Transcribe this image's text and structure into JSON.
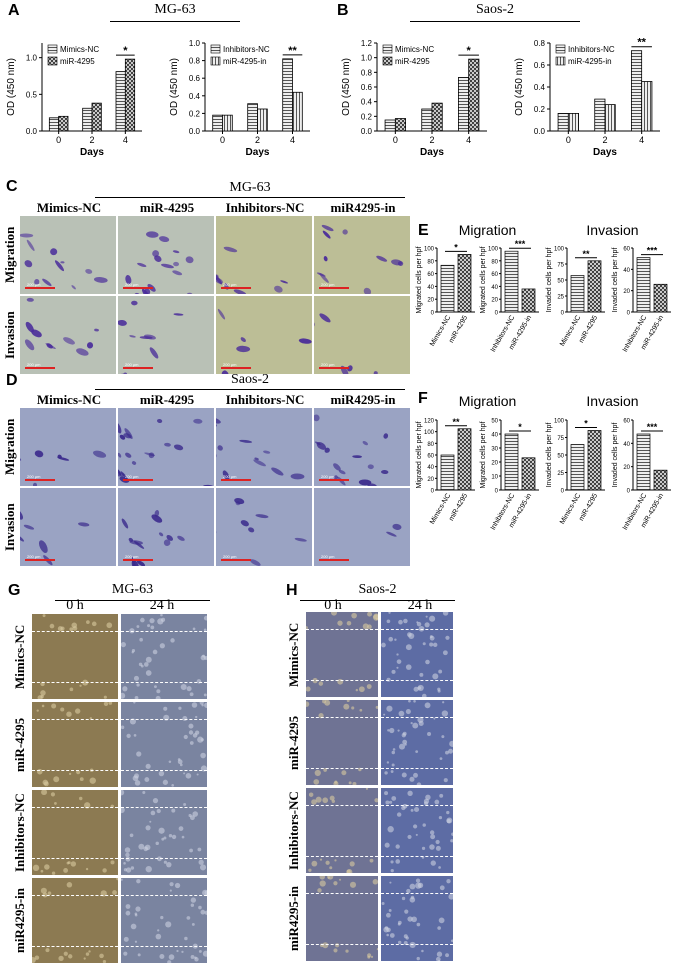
{
  "panel_labels": {
    "A": "A",
    "B": "B",
    "C": "C",
    "D": "D",
    "E": "E",
    "F": "F",
    "G": "G",
    "H": "H"
  },
  "titles": {
    "A": "MG-63",
    "B": "Saos-2",
    "C": "MG-63",
    "D": "Saos-2",
    "E_migration": "Migration",
    "E_invasion": "Invasion",
    "F_migration": "Migration",
    "F_invasion": "Invasion",
    "G": "MG-63",
    "H": "Saos-2"
  },
  "column_headers_cd": [
    "Mimics-NC",
    "miR-4295",
    "Inhibitors-NC",
    "miR4295-in"
  ],
  "row_labels_cd": [
    "Migration",
    "Invasion"
  ],
  "time_headers": [
    "0 h",
    "24 h"
  ],
  "row_labels_g": [
    "Mimics-NC",
    "miR-4295",
    "Inhibitors-NC",
    "miR4295-in"
  ],
  "row_labels_h": [
    "Mimics-NC",
    "miR-4295",
    "Inhibitors-NC",
    "miR4295-in"
  ],
  "scale_text": "200 μm",
  "colors": {
    "micro_cd_mg63_ctrl": "#b9c1b6",
    "micro_cd_mg63_inh": "#bcbe96",
    "micro_saos": "#9aa3c3",
    "wound_mg63_0h": "#8c7a52",
    "wound_mg63_24h": "#7a84a0",
    "wound_saos": "#5d6ca4"
  },
  "chart_data": [
    {
      "id": "A1",
      "type": "bar",
      "ylabel": "OD (450 nm)",
      "xlabel": "Days",
      "categories": [
        "0",
        "2",
        "4"
      ],
      "ylim": [
        0,
        1.2
      ],
      "yticks": [
        "0.0",
        "0.5",
        "1.0"
      ],
      "series": [
        {
          "name": "Mimics-NC",
          "values": [
            0.18,
            0.31,
            0.81
          ]
        },
        {
          "name": "miR-4295",
          "values": [
            0.2,
            0.38,
            0.98
          ]
        }
      ],
      "annotations": [
        {
          "text": "*",
          "category": "4"
        }
      ]
    },
    {
      "id": "A2",
      "type": "bar",
      "ylabel": "OD (450 nm)",
      "xlabel": "Days",
      "categories": [
        "0",
        "2",
        "4"
      ],
      "ylim": [
        0,
        1.0
      ],
      "yticks": [
        "0.0",
        "0.2",
        "0.4",
        "0.6",
        "0.8",
        "1.0"
      ],
      "series": [
        {
          "name": "Inhibitors-NC",
          "values": [
            0.18,
            0.31,
            0.82
          ]
        },
        {
          "name": "miR-4295-in",
          "values": [
            0.18,
            0.25,
            0.44
          ]
        }
      ],
      "annotations": [
        {
          "text": "**",
          "category": "4"
        }
      ]
    },
    {
      "id": "B1",
      "type": "bar",
      "ylabel": "OD (450 nm)",
      "xlabel": "Days",
      "categories": [
        "0",
        "2",
        "4"
      ],
      "ylim": [
        0,
        1.2
      ],
      "yticks": [
        "0.0",
        "0.2",
        "0.4",
        "0.6",
        "0.8",
        "1.0",
        "1.2"
      ],
      "series": [
        {
          "name": "Mimics-NC",
          "values": [
            0.15,
            0.3,
            0.73
          ]
        },
        {
          "name": "miR-4295",
          "values": [
            0.17,
            0.38,
            0.98
          ]
        }
      ],
      "annotations": [
        {
          "text": "*",
          "category": "4"
        }
      ]
    },
    {
      "id": "B2",
      "type": "bar",
      "ylabel": "OD (450 nm)",
      "xlabel": "Days",
      "categories": [
        "0",
        "2",
        "4"
      ],
      "ylim": [
        0,
        0.8
      ],
      "yticks": [
        "0.0",
        "0.2",
        "0.4",
        "0.6",
        "0.8"
      ],
      "series": [
        {
          "name": "Inhibitors-NC",
          "values": [
            0.16,
            0.29,
            0.73
          ]
        },
        {
          "name": "miR-4295-in",
          "values": [
            0.16,
            0.24,
            0.45
          ]
        }
      ],
      "annotations": [
        {
          "text": "**",
          "category": "4"
        }
      ]
    },
    {
      "id": "E1",
      "type": "bar",
      "ylabel": "Migrated cells per hpf",
      "categories": [
        "Mimics-NC",
        "miR-4295"
      ],
      "values": [
        73,
        90
      ],
      "ylim": [
        0,
        100
      ],
      "yticks": [
        "0",
        "20",
        "40",
        "60",
        "80",
        "100"
      ],
      "annotations": [
        {
          "text": "*"
        }
      ]
    },
    {
      "id": "E2",
      "type": "bar",
      "ylabel": "Migrated cells per hpf",
      "categories": [
        "Inhibitors-NC",
        "miR-4295-in"
      ],
      "values": [
        95,
        36
      ],
      "ylim": [
        0,
        100
      ],
      "yticks": [
        "0",
        "20",
        "40",
        "60",
        "80",
        "100"
      ],
      "annotations": [
        {
          "text": "***"
        }
      ]
    },
    {
      "id": "E3",
      "type": "bar",
      "ylabel": "Invaded cells per hpf",
      "categories": [
        "Mimics-NC",
        "miR-4295"
      ],
      "values": [
        57,
        80
      ],
      "ylim": [
        0,
        100
      ],
      "yticks": [
        "0",
        "25",
        "50",
        "75",
        "100"
      ],
      "annotations": [
        {
          "text": "**"
        }
      ]
    },
    {
      "id": "E4",
      "type": "bar",
      "ylabel": "Invaded cells per hpf",
      "categories": [
        "Inhibitors-NC",
        "miR-4295-in"
      ],
      "values": [
        51,
        26
      ],
      "ylim": [
        0,
        60
      ],
      "yticks": [
        "0",
        "20",
        "40",
        "60"
      ],
      "annotations": [
        {
          "text": "***"
        }
      ]
    },
    {
      "id": "F1",
      "type": "bar",
      "ylabel": "Migrated cells per hpf",
      "categories": [
        "Mimics-NC",
        "miR-4295"
      ],
      "values": [
        60,
        105
      ],
      "ylim": [
        0,
        120
      ],
      "yticks": [
        "0",
        "20",
        "40",
        "60",
        "80",
        "100",
        "120"
      ],
      "annotations": [
        {
          "text": "**"
        }
      ]
    },
    {
      "id": "F2",
      "type": "bar",
      "ylabel": "Migrated cells per hpf",
      "categories": [
        "Inhibitors-NC",
        "miR-4295-in"
      ],
      "values": [
        40,
        23
      ],
      "ylim": [
        0,
        50
      ],
      "yticks": [
        "0",
        "10",
        "20",
        "30",
        "40",
        "50"
      ],
      "annotations": [
        {
          "text": "*"
        }
      ]
    },
    {
      "id": "F3",
      "type": "bar",
      "ylabel": "Invaded cells per hpf",
      "categories": [
        "Mimics-NC",
        "miR-4295"
      ],
      "values": [
        65,
        85
      ],
      "ylim": [
        0,
        100
      ],
      "yticks": [
        "0",
        "25",
        "50",
        "75",
        "100"
      ],
      "annotations": [
        {
          "text": "*"
        }
      ]
    },
    {
      "id": "F4",
      "type": "bar",
      "ylabel": "Invaded cells per hpf",
      "categories": [
        "Inhibitors-NC",
        "miR-4295-in"
      ],
      "values": [
        48,
        17
      ],
      "ylim": [
        0,
        60
      ],
      "yticks": [
        "0",
        "20",
        "40",
        "60"
      ],
      "annotations": [
        {
          "text": "***"
        }
      ]
    }
  ]
}
